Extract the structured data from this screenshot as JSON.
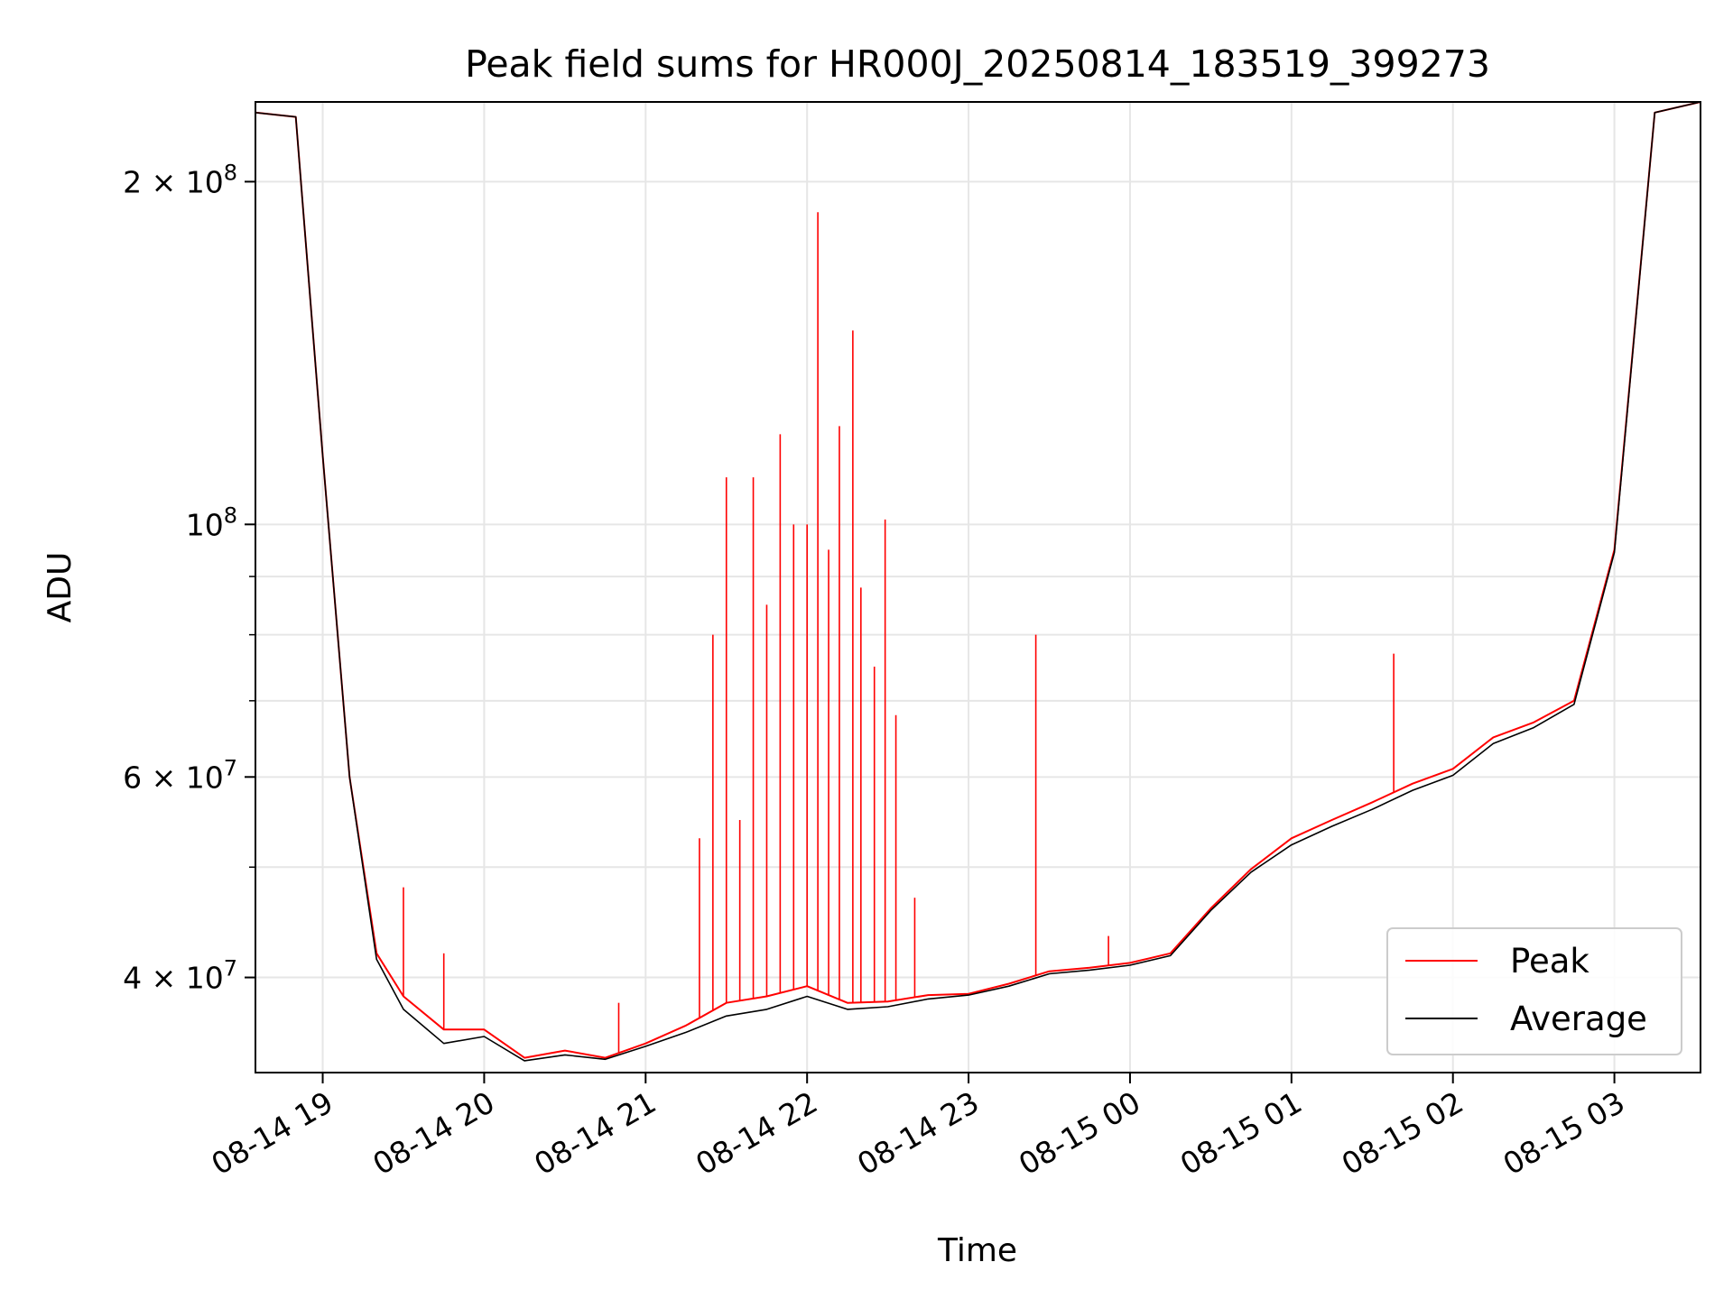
{
  "chart_data": {
    "type": "line",
    "title": "Peak field sums for HR000J_20250814_183519_399273",
    "xlabel": "Time",
    "ylabel": "ADU",
    "yscale": "log",
    "grid": true,
    "legend_position": "lower-right",
    "xlim": [
      "08-14 18:35",
      "08-15 03:32"
    ],
    "ylim": [
      33000000.0,
      235000000.0
    ],
    "xticks": [
      "08-14 19",
      "08-14 20",
      "08-14 21",
      "08-14 22",
      "08-14 23",
      "08-15 00",
      "08-15 01",
      "08-15 02",
      "08-15 03"
    ],
    "yticks": [
      {
        "value": 40000000.0,
        "base": "4 × 10",
        "exp": "7"
      },
      {
        "value": 60000000.0,
        "base": "6 × 10",
        "exp": "7"
      },
      {
        "value": 100000000.0,
        "base": "10",
        "exp": "8"
      },
      {
        "value": 200000000.0,
        "base": "2 × 10",
        "exp": "8"
      }
    ],
    "yminor": [
      30000000.0,
      50000000.0,
      70000000.0,
      80000000.0,
      90000000.0
    ],
    "x": [
      "08-14 18:35",
      "08-14 18:50",
      "08-14 19:00",
      "08-14 19:10",
      "08-14 19:20",
      "08-14 19:30",
      "08-14 19:45",
      "08-14 20:00",
      "08-14 20:15",
      "08-14 20:30",
      "08-14 20:45",
      "08-14 21:00",
      "08-14 21:15",
      "08-14 21:30",
      "08-14 21:45",
      "08-14 22:00",
      "08-14 22:15",
      "08-14 22:30",
      "08-14 22:45",
      "08-14 23:00",
      "08-14 23:15",
      "08-14 23:30",
      "08-14 23:45",
      "08-15 00:00",
      "08-15 00:15",
      "08-15 00:30",
      "08-15 00:45",
      "08-15 01:00",
      "08-15 01:15",
      "08-15 01:30",
      "08-15 01:45",
      "08-15 02:00",
      "08-15 02:15",
      "08-15 02:30",
      "08-15 02:45",
      "08-15 03:00",
      "08-15 03:15",
      "08-15 03:32"
    ],
    "series": [
      {
        "name": "Peak",
        "color": "#ff0000",
        "values": [
          230000000.0,
          228000000.0,
          115000000.0,
          60000000.0,
          42000000.0,
          38500000.0,
          36000000.0,
          36000000.0,
          34000000.0,
          34500000.0,
          34000000.0,
          35000000.0,
          36300000.0,
          38000000.0,
          38500000.0,
          39300000.0,
          38000000.0,
          38100000.0,
          38600000.0,
          38700000.0,
          39500000.0,
          40500000.0,
          40800000.0,
          41200000.0,
          42000000.0,
          46000000.0,
          49800000.0,
          53000000.0,
          55000000.0,
          57000000.0,
          59200000.0,
          61000000.0,
          65000000.0,
          67000000.0,
          70000000.0,
          95000000.0,
          230000000.0,
          235000000.0
        ]
      },
      {
        "name": "Average",
        "color": "#000000",
        "values": [
          230000000.0,
          228000000.0,
          115000000.0,
          60000000.0,
          41500000.0,
          37500000.0,
          35000000.0,
          35500000.0,
          33800000.0,
          34200000.0,
          33900000.0,
          34800000.0,
          35800000.0,
          37000000.0,
          37500000.0,
          38500000.0,
          37500000.0,
          37700000.0,
          38300000.0,
          38600000.0,
          39300000.0,
          40300000.0,
          40600000.0,
          41000000.0,
          41800000.0,
          45800000.0,
          49500000.0,
          52300000.0,
          54300000.0,
          56200000.0,
          58400000.0,
          60200000.0,
          64200000.0,
          66300000.0,
          69500000.0,
          94500000.0,
          230000000.0,
          235000000.0
        ]
      }
    ],
    "spikes": [
      {
        "x": "08-14 19:30",
        "y": 48000000.0
      },
      {
        "x": "08-14 19:45",
        "y": 42000000.0
      },
      {
        "x": "08-14 20:50",
        "y": 38000000.0
      },
      {
        "x": "08-14 21:20",
        "y": 53000000.0
      },
      {
        "x": "08-14 21:25",
        "y": 80000000.0
      },
      {
        "x": "08-14 21:30",
        "y": 110000000.0
      },
      {
        "x": "08-14 21:35",
        "y": 55000000.0
      },
      {
        "x": "08-14 21:40",
        "y": 110000000.0
      },
      {
        "x": "08-14 21:45",
        "y": 85000000.0
      },
      {
        "x": "08-14 21:50",
        "y": 120000000.0
      },
      {
        "x": "08-14 21:55",
        "y": 100000000.0
      },
      {
        "x": "08-14 22:00",
        "y": 100000000.0
      },
      {
        "x": "08-14 22:04",
        "y": 188000000.0
      },
      {
        "x": "08-14 22:08",
        "y": 95000000.0
      },
      {
        "x": "08-14 22:12",
        "y": 122000000.0
      },
      {
        "x": "08-14 22:17",
        "y": 148000000.0
      },
      {
        "x": "08-14 22:20",
        "y": 88000000.0
      },
      {
        "x": "08-14 22:25",
        "y": 75000000.0
      },
      {
        "x": "08-14 22:29",
        "y": 101000000.0
      },
      {
        "x": "08-14 22:33",
        "y": 68000000.0
      },
      {
        "x": "08-14 22:40",
        "y": 47000000.0
      },
      {
        "x": "08-14 23:25",
        "y": 80000000.0
      },
      {
        "x": "08-14 23:52",
        "y": 43500000.0
      },
      {
        "x": "08-15 01:38",
        "y": 77000000.0
      }
    ],
    "legend": [
      "Peak",
      "Average"
    ]
  }
}
